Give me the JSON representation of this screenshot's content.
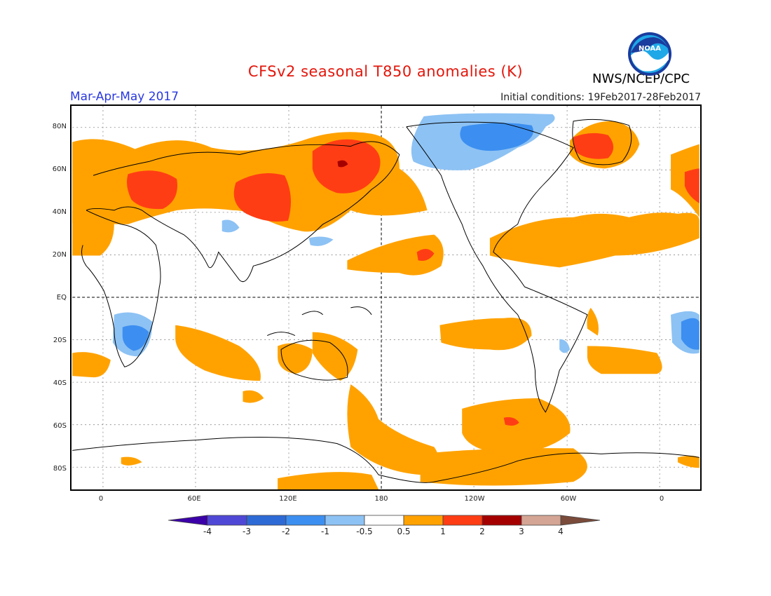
{
  "title": "CFSv2 seasonal T850 anomalies (K)",
  "season": "Mar-Apr-May 2017",
  "initial_conditions": "Initial conditions: 19Feb2017-28Feb2017",
  "agency": "NWS/NCEP/CPC",
  "logo_text": "NOAA",
  "lat_labels": [
    "80N",
    "60N",
    "40N",
    "20N",
    "EQ",
    "20S",
    "40S",
    "60S",
    "80S"
  ],
  "lon_labels": [
    "0",
    "60E",
    "120E",
    "180",
    "120W",
    "60W",
    "0"
  ],
  "colorbar": {
    "labels": [
      "-4",
      "-3",
      "-2",
      "-1",
      "-0.5",
      "0.5",
      "1",
      "2",
      "3",
      "4"
    ],
    "colors": [
      "#3b00a8",
      "#4f48d6",
      "#2e6ad6",
      "#3c8ff0",
      "#8dc2f4",
      "#ffffff",
      "#ffa200",
      "#ff3d14",
      "#a50000",
      "#d4a594",
      "#7a4b3a"
    ]
  }
}
